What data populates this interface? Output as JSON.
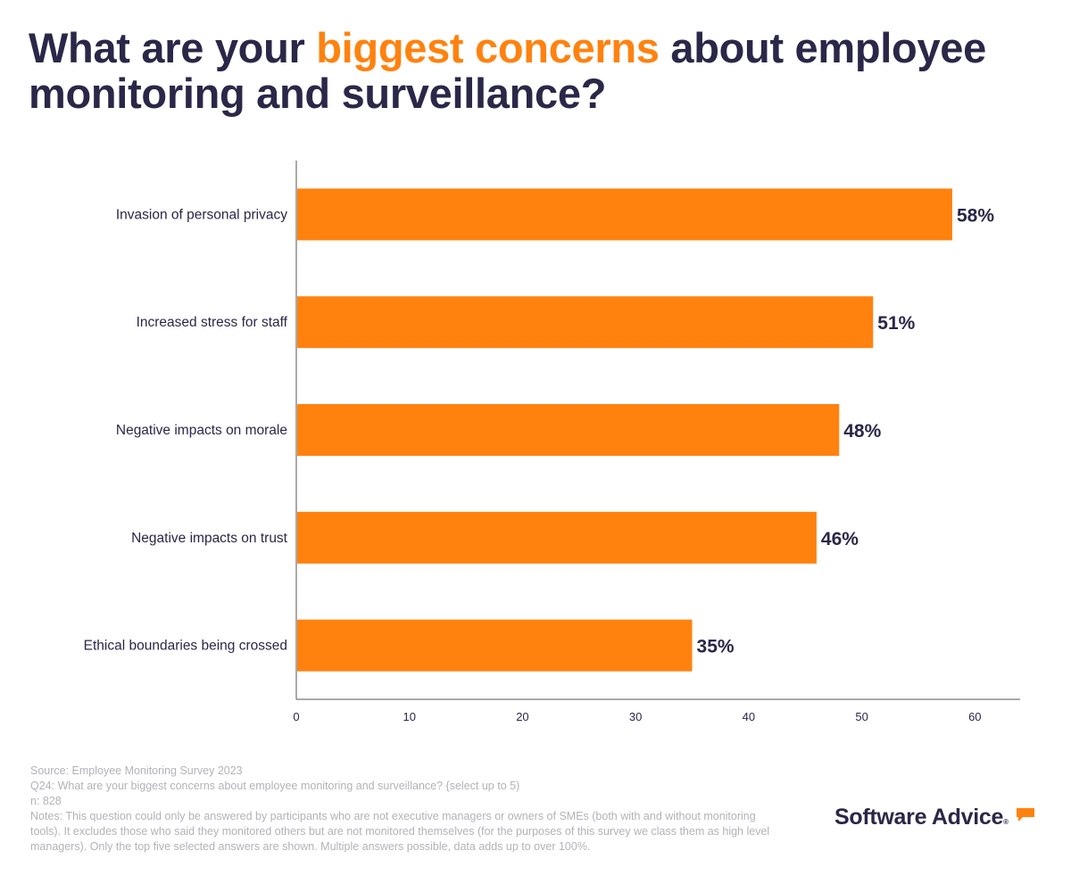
{
  "title": {
    "pre": "What are your ",
    "highlight": "biggest concerns",
    "post": " about employee monitoring and surveillance?"
  },
  "colors": {
    "bar": "#ff820f",
    "text": "#2b2748",
    "highlight": "#ff820f",
    "footer": "#b3b3b8"
  },
  "chart_data": {
    "type": "bar",
    "orientation": "horizontal",
    "categories": [
      "Invasion of personal privacy",
      "Increased stress for staff",
      "Negative impacts on morale",
      "Negative impacts on trust",
      "Ethical boundaries being crossed"
    ],
    "values": [
      58,
      51,
      48,
      46,
      35
    ],
    "data_labels": [
      "58%",
      "51%",
      "48%",
      "46%",
      "35%"
    ],
    "xlim": [
      0,
      64
    ],
    "xticks": [
      0,
      10,
      20,
      30,
      40,
      50,
      60
    ],
    "grid": false,
    "title": "What are your biggest concerns about employee monitoring and surveillance?"
  },
  "footer": {
    "source": "Source: Employee Monitoring Survey 2023",
    "question": "Q24: What are your biggest concerns about employee monitoring and surveillance? {select up to 5)",
    "n": "n: 828",
    "notes": "Notes: This question could only be answered by participants who are not executive managers or owners of SMEs (both with and without monitoring tools). It excludes those who said they monitored others but are not monitored themselves (for the purposes of this survey we class them as high level managers). Only the top five selected answers are shown. Multiple answers possible, data adds up to over 100%."
  },
  "logo": {
    "text": "Software Advice",
    "icon": "speech-bubble-icon"
  }
}
